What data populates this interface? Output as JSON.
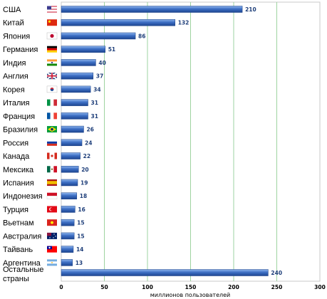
{
  "chart_data": {
    "type": "bar",
    "orientation": "horizontal",
    "title": "",
    "xlabel": "миллионов пользователей",
    "ylabel": "",
    "xlim": [
      0,
      300
    ],
    "xticks": [
      0,
      50,
      100,
      150,
      200,
      250,
      300
    ],
    "grid": true,
    "categories": [
      "США",
      "Китай",
      "Япония",
      "Германия",
      "Индия",
      "Англия",
      "Корея",
      "Италия",
      "Франция",
      "Бразилия",
      "Россия",
      "Канада",
      "Мексика",
      "Испания",
      "Индонезия",
      "Турция",
      "Вьетнам",
      "Австралия",
      "Тайвань",
      "Аргентина",
      "Остальные страны"
    ],
    "values": [
      210,
      132,
      86,
      51,
      40,
      37,
      34,
      31,
      31,
      26,
      24,
      22,
      20,
      19,
      18,
      16,
      15,
      15,
      14,
      13,
      240
    ],
    "flag_icons": [
      "flag-usa-icon",
      "flag-china-icon",
      "flag-japan-icon",
      "flag-germany-icon",
      "flag-india-icon",
      "flag-uk-icon",
      "flag-korea-icon",
      "flag-italy-icon",
      "flag-france-icon",
      "flag-brazil-icon",
      "flag-russia-icon",
      "flag-canada-icon",
      "flag-mexico-icon",
      "flag-spain-icon",
      "flag-indonesia-icon",
      "flag-turkey-icon",
      "flag-vietnam-icon",
      "flag-australia-icon",
      "flag-taiwan-icon",
      "flag-argentina-icon",
      ""
    ],
    "colors": {
      "bar": "#2f5fb0",
      "bar_light": "#6d9be0",
      "grid": "#9ed3a0",
      "value_text": "#1f3f7a"
    }
  }
}
